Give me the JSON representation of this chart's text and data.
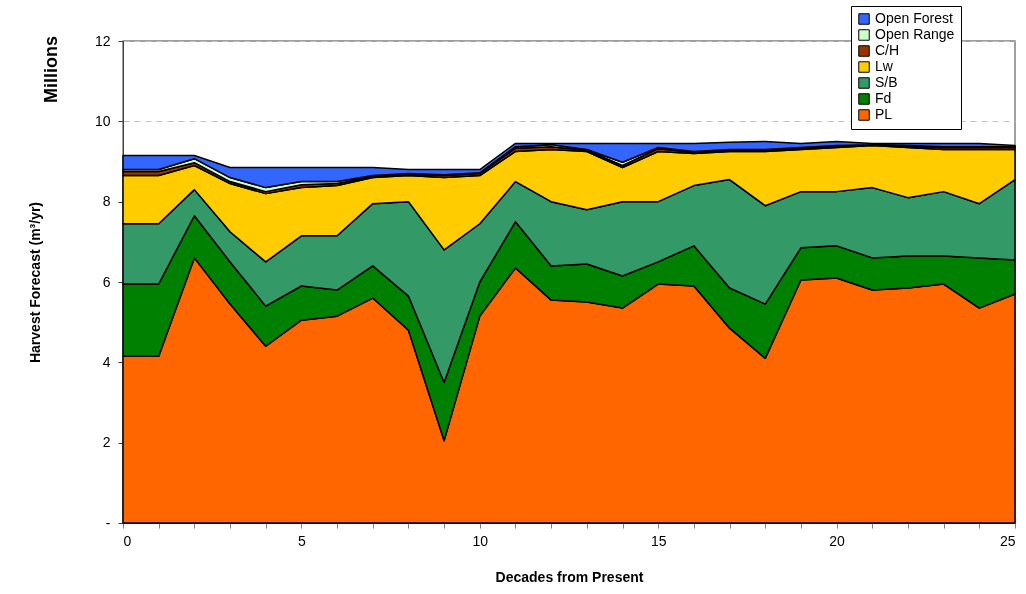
{
  "chart_data": {
    "type": "area",
    "stacked": true,
    "xlabel": "Decades from Present",
    "ylabel": "Harvest Forecast (m³/yr)",
    "annotations": [
      "Millions"
    ],
    "x": [
      0,
      1,
      2,
      3,
      4,
      5,
      6,
      7,
      8,
      9,
      10,
      11,
      12,
      13,
      14,
      15,
      16,
      17,
      18,
      19,
      20,
      21,
      22,
      23,
      24,
      25
    ],
    "series": [
      {
        "name": "PL",
        "color": "#ff6600",
        "values": [
          4.15,
          4.15,
          6.6,
          5.45,
          4.4,
          5.05,
          5.15,
          5.6,
          4.8,
          2.05,
          5.15,
          6.35,
          5.55,
          5.5,
          5.35,
          5.95,
          5.9,
          4.85,
          4.1,
          6.05,
          6.1,
          5.8,
          5.85,
          5.95,
          5.35,
          5.7
        ]
      },
      {
        "name": "Fd",
        "color": "#008000",
        "values": [
          1.8,
          1.8,
          1.05,
          1.05,
          1.0,
          0.85,
          0.65,
          0.8,
          0.85,
          1.45,
          0.85,
          1.15,
          0.85,
          0.95,
          0.8,
          0.55,
          1.0,
          1.0,
          1.35,
          0.8,
          0.8,
          0.8,
          0.8,
          0.7,
          1.25,
          0.85
        ]
      },
      {
        "name": "S/B",
        "color": "#339966",
        "values": [
          1.5,
          1.5,
          0.65,
          0.75,
          1.1,
          1.25,
          1.35,
          1.55,
          2.35,
          3.3,
          1.45,
          1.0,
          1.6,
          1.35,
          1.85,
          1.5,
          1.5,
          2.7,
          2.45,
          1.4,
          1.35,
          1.75,
          1.45,
          1.6,
          1.35,
          2.0
        ]
      },
      {
        "name": "Lw",
        "color": "#ffcc00",
        "values": [
          1.2,
          1.2,
          0.6,
          1.2,
          1.7,
          1.2,
          1.25,
          0.65,
          0.65,
          1.8,
          1.2,
          0.75,
          1.3,
          1.45,
          0.85,
          1.25,
          0.8,
          0.7,
          1.35,
          1.05,
          1.1,
          1.05,
          1.25,
          1.05,
          1.35,
          0.75
        ]
      },
      {
        "name": "C/H",
        "color": "#993300",
        "values": [
          0.1,
          0.1,
          0.07,
          0.05,
          0.05,
          0.07,
          0.05,
          0.03,
          0.03,
          0.05,
          0.05,
          0.08,
          0.07,
          0.03,
          0.05,
          0.07,
          0.03,
          0.02,
          0.03,
          0.02,
          0.03,
          0.02,
          0.03,
          0.05,
          0.05,
          0.05
        ]
      },
      {
        "name": "Open Range",
        "color": "#ccffcc",
        "values": [
          0.05,
          0.05,
          0.1,
          0.1,
          0.1,
          0.08,
          0.05,
          0.02,
          0.02,
          0.02,
          0.02,
          0.04,
          0.05,
          0.02,
          0.08,
          0.03,
          0.02,
          0.03,
          0.02,
          0.03,
          0.02,
          0,
          0.02,
          0.02,
          0.02,
          0.02
        ]
      },
      {
        "name": "Open Forest",
        "color": "#3366ff",
        "values": [
          0.35,
          0.35,
          0.08,
          0.25,
          0.5,
          0.35,
          0.35,
          0.2,
          0.1,
          0.13,
          0.08,
          0.08,
          0.03,
          0.15,
          0.47,
          0.1,
          0.2,
          0.18,
          0.2,
          0.1,
          0.1,
          0.03,
          0.05,
          0.08,
          0.08,
          0.03
        ]
      }
    ],
    "xlim": [
      0,
      25
    ],
    "xticks": [
      0,
      {
        "value": 1,
        "label": null
      },
      {
        "value": 2,
        "label": null
      },
      {
        "value": 3,
        "label": null
      },
      {
        "value": 4,
        "label": null
      },
      5,
      {
        "value": 6,
        "label": null
      },
      {
        "value": 7,
        "label": null
      },
      {
        "value": 8,
        "label": null
      },
      {
        "value": 9,
        "label": null
      },
      10,
      {
        "value": 11,
        "label": null
      },
      {
        "value": 12,
        "label": null
      },
      {
        "value": 13,
        "label": null
      },
      {
        "value": 14,
        "label": null
      },
      15,
      {
        "value": 16,
        "label": null
      },
      {
        "value": 17,
        "label": null
      },
      {
        "value": 18,
        "label": null
      },
      {
        "value": 19,
        "label": null
      },
      20,
      {
        "value": 21,
        "label": null
      },
      {
        "value": 22,
        "label": null
      },
      {
        "value": 23,
        "label": null
      },
      {
        "value": 24,
        "label": null
      },
      25
    ],
    "ylim": [
      0,
      12
    ],
    "yticks": [
      {
        "value": 0,
        "label": "-"
      },
      2,
      4,
      6,
      8,
      10,
      12
    ],
    "grid": "y",
    "legend": "top right"
  }
}
